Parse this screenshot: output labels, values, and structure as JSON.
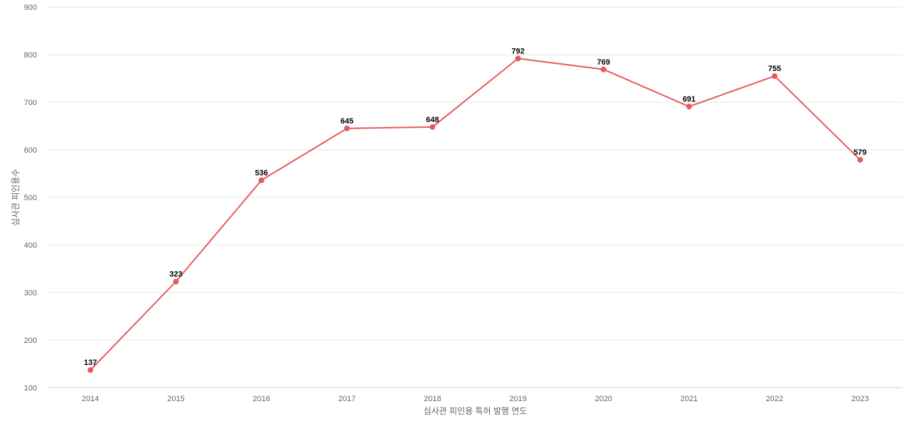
{
  "chart_data": {
    "type": "line",
    "title": "",
    "xlabel": "심사관 피인용 특허 발행 연도",
    "ylabel": "심사관 피인용수",
    "categories": [
      "2014",
      "2015",
      "2016",
      "2017",
      "2018",
      "2019",
      "2020",
      "2021",
      "2022",
      "2023"
    ],
    "series": [
      {
        "values": [
          137,
          323,
          536,
          645,
          648,
          792,
          769,
          691,
          755,
          579
        ],
        "color": "#e85a5a"
      }
    ],
    "ylim": [
      100,
      900
    ],
    "yticks": [
      100,
      200,
      300,
      400,
      500,
      600,
      700,
      800,
      900
    ],
    "grid": true,
    "legend": "none",
    "data_labels": true
  }
}
